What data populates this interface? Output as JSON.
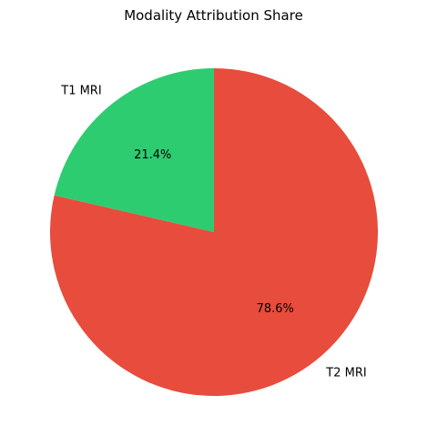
{
  "chart_data": {
    "type": "pie",
    "title": "Modality Attribution Share",
    "start_angle_deg": 90,
    "direction": "counterclockwise",
    "slices": [
      {
        "label": "T1 MRI",
        "value": 21.4,
        "pct_label": "21.4%",
        "color": "#2ecc71"
      },
      {
        "label": "T2 MRI",
        "value": 78.6,
        "pct_label": "78.6%",
        "color": "#e74c3c"
      }
    ]
  }
}
